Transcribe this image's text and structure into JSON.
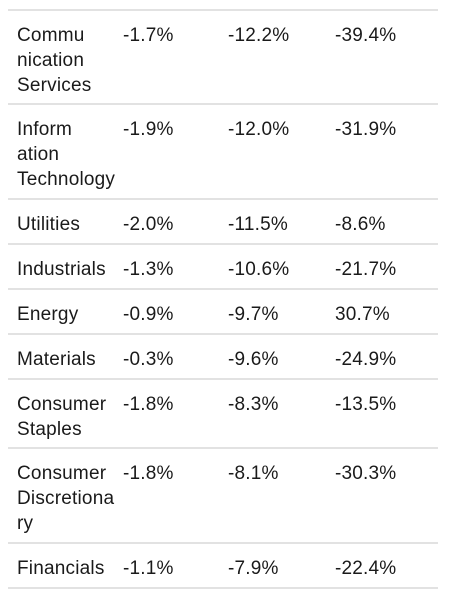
{
  "rows": [
    {
      "sector": "Commu\nnication\nServices",
      "a": "-1.7%",
      "b": "-12.2%",
      "c": "-39.4%"
    },
    {
      "sector": "Inform\nation\nTechnology",
      "a": "-1.9%",
      "b": "-12.0%",
      "c": "-31.9%"
    },
    {
      "sector": "Utilities",
      "a": "-2.0%",
      "b": "-11.5%",
      "c": "-8.6%"
    },
    {
      "sector": "Industrials",
      "a": "-1.3%",
      "b": "-10.6%",
      "c": "-21.7%"
    },
    {
      "sector": "Energy",
      "a": "-0.9%",
      "b": "-9.7%",
      "c": "30.7%"
    },
    {
      "sector": "Materials",
      "a": "-0.3%",
      "b": "-9.6%",
      "c": "-24.9%"
    },
    {
      "sector": "Consumer\nStaples",
      "a": "-1.8%",
      "b": "-8.3%",
      "c": "-13.5%"
    },
    {
      "sector": "Consumer\nDiscretiona\nry",
      "a": "-1.8%",
      "b": "-8.1%",
      "c": "-30.3%"
    },
    {
      "sector": "Financials",
      "a": "-1.1%",
      "b": "-7.9%",
      "c": "-22.4%"
    }
  ]
}
